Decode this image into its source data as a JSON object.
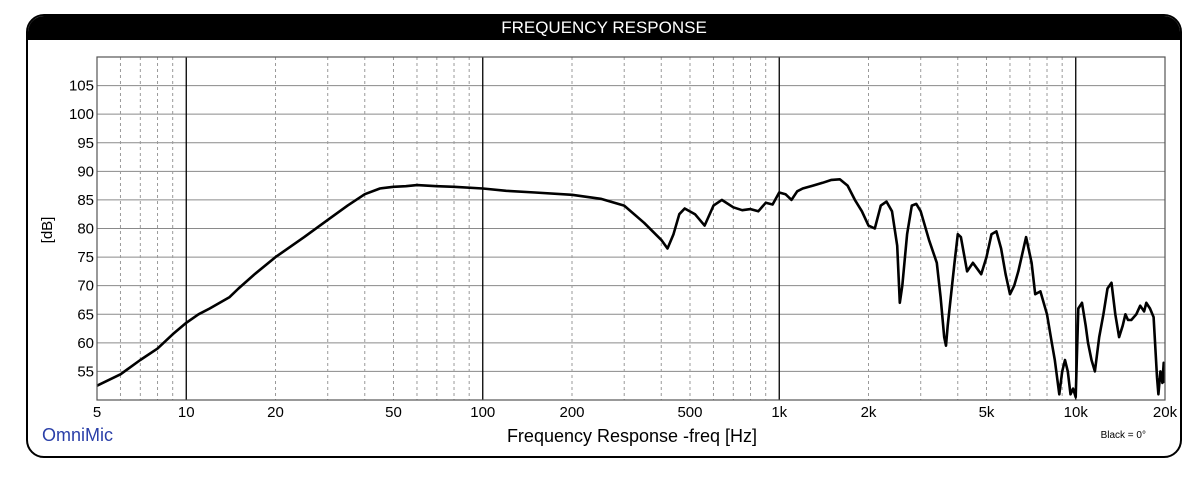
{
  "chart_data": {
    "type": "line",
    "title": "FREQUENCY RESPONSE",
    "xlabel": "Frequency Response -freq [Hz]",
    "ylabel": "[dB]",
    "x_scale": "log",
    "xlim": [
      5,
      20000
    ],
    "ylim": [
      50,
      110
    ],
    "y_ticks": [
      55,
      60,
      65,
      70,
      75,
      80,
      85,
      90,
      95,
      100,
      105
    ],
    "x_ticks": [
      {
        "value": 5,
        "label": "5"
      },
      {
        "value": 10,
        "label": "10"
      },
      {
        "value": 20,
        "label": "20"
      },
      {
        "value": 50,
        "label": "50"
      },
      {
        "value": 100,
        "label": "100"
      },
      {
        "value": 200,
        "label": "200"
      },
      {
        "value": 500,
        "label": "500"
      },
      {
        "value": 1000,
        "label": "1k"
      },
      {
        "value": 2000,
        "label": "2k"
      },
      {
        "value": 5000,
        "label": "5k"
      },
      {
        "value": 10000,
        "label": "10k"
      },
      {
        "value": 20000,
        "label": "20k"
      }
    ],
    "grid": true,
    "brand": "OmniMic",
    "note": "Black = 0°",
    "series": [
      {
        "color": "#000000",
        "points": [
          [
            5,
            52.5
          ],
          [
            6,
            54.5
          ],
          [
            7,
            57
          ],
          [
            8,
            59
          ],
          [
            9,
            61.5
          ],
          [
            10,
            63.5
          ],
          [
            11,
            65
          ],
          [
            12,
            66
          ],
          [
            14,
            68
          ],
          [
            15,
            69.5
          ],
          [
            17,
            72
          ],
          [
            20,
            75
          ],
          [
            25,
            78.5
          ],
          [
            30,
            81.5
          ],
          [
            35,
            84
          ],
          [
            40,
            86
          ],
          [
            45,
            87
          ],
          [
            50,
            87.3
          ],
          [
            55,
            87.4
          ],
          [
            60,
            87.6
          ],
          [
            70,
            87.4
          ],
          [
            80,
            87.3
          ],
          [
            100,
            87
          ],
          [
            120,
            86.6
          ],
          [
            150,
            86.3
          ],
          [
            200,
            85.9
          ],
          [
            250,
            85.2
          ],
          [
            300,
            84
          ],
          [
            350,
            81
          ],
          [
            400,
            78
          ],
          [
            420,
            76.5
          ],
          [
            440,
            79
          ],
          [
            460,
            82.5
          ],
          [
            480,
            83.5
          ],
          [
            520,
            82.5
          ],
          [
            560,
            80.5
          ],
          [
            600,
            84
          ],
          [
            640,
            85
          ],
          [
            700,
            83.7
          ],
          [
            750,
            83.2
          ],
          [
            800,
            83.4
          ],
          [
            850,
            83
          ],
          [
            900,
            84.5
          ],
          [
            950,
            84.2
          ],
          [
            1000,
            86.3
          ],
          [
            1050,
            86
          ],
          [
            1100,
            85
          ],
          [
            1150,
            86.5
          ],
          [
            1200,
            87
          ],
          [
            1300,
            87.5
          ],
          [
            1400,
            88
          ],
          [
            1500,
            88.5
          ],
          [
            1600,
            88.6
          ],
          [
            1700,
            87.5
          ],
          [
            1800,
            85
          ],
          [
            1900,
            83
          ],
          [
            2000,
            80.5
          ],
          [
            2100,
            80
          ],
          [
            2200,
            84
          ],
          [
            2300,
            84.7
          ],
          [
            2400,
            83
          ],
          [
            2500,
            77
          ],
          [
            2550,
            67
          ],
          [
            2600,
            70
          ],
          [
            2700,
            79
          ],
          [
            2800,
            84
          ],
          [
            2900,
            84.3
          ],
          [
            3000,
            83
          ],
          [
            3200,
            78
          ],
          [
            3400,
            74
          ],
          [
            3500,
            68
          ],
          [
            3600,
            61
          ],
          [
            3650,
            59.5
          ],
          [
            3700,
            63
          ],
          [
            3900,
            74
          ],
          [
            4000,
            79
          ],
          [
            4100,
            78.5
          ],
          [
            4300,
            72.5
          ],
          [
            4500,
            74
          ],
          [
            4800,
            72
          ],
          [
            5000,
            75
          ],
          [
            5200,
            79
          ],
          [
            5400,
            79.5
          ],
          [
            5600,
            76.5
          ],
          [
            5800,
            72
          ],
          [
            6000,
            68.5
          ],
          [
            6200,
            70
          ],
          [
            6400,
            72.5
          ],
          [
            6800,
            78.5
          ],
          [
            7100,
            74
          ],
          [
            7300,
            68.5
          ],
          [
            7600,
            69
          ],
          [
            8000,
            65
          ],
          [
            8300,
            60
          ],
          [
            8500,
            57
          ],
          [
            8700,
            53
          ],
          [
            8800,
            51
          ],
          [
            9000,
            55
          ],
          [
            9200,
            57
          ],
          [
            9400,
            55
          ],
          [
            9600,
            51
          ],
          [
            9800,
            52
          ],
          [
            10000,
            50.5
          ],
          [
            10200,
            66
          ],
          [
            10500,
            67
          ],
          [
            10800,
            63
          ],
          [
            11000,
            60
          ],
          [
            11300,
            57
          ],
          [
            11600,
            55
          ],
          [
            12000,
            61
          ],
          [
            12400,
            65
          ],
          [
            12800,
            69.5
          ],
          [
            13200,
            70.5
          ],
          [
            13600,
            65
          ],
          [
            14000,
            61
          ],
          [
            14400,
            63
          ],
          [
            14700,
            65
          ],
          [
            15000,
            64
          ],
          [
            15400,
            64
          ],
          [
            16000,
            65
          ],
          [
            16500,
            66.5
          ],
          [
            17000,
            65.5
          ],
          [
            17300,
            67
          ],
          [
            17800,
            66
          ],
          [
            18300,
            64.5
          ],
          [
            18800,
            54
          ],
          [
            19000,
            51
          ],
          [
            19300,
            55
          ],
          [
            19600,
            53
          ],
          [
            19800,
            56.5
          ],
          [
            20000,
            53
          ]
        ]
      }
    ]
  }
}
